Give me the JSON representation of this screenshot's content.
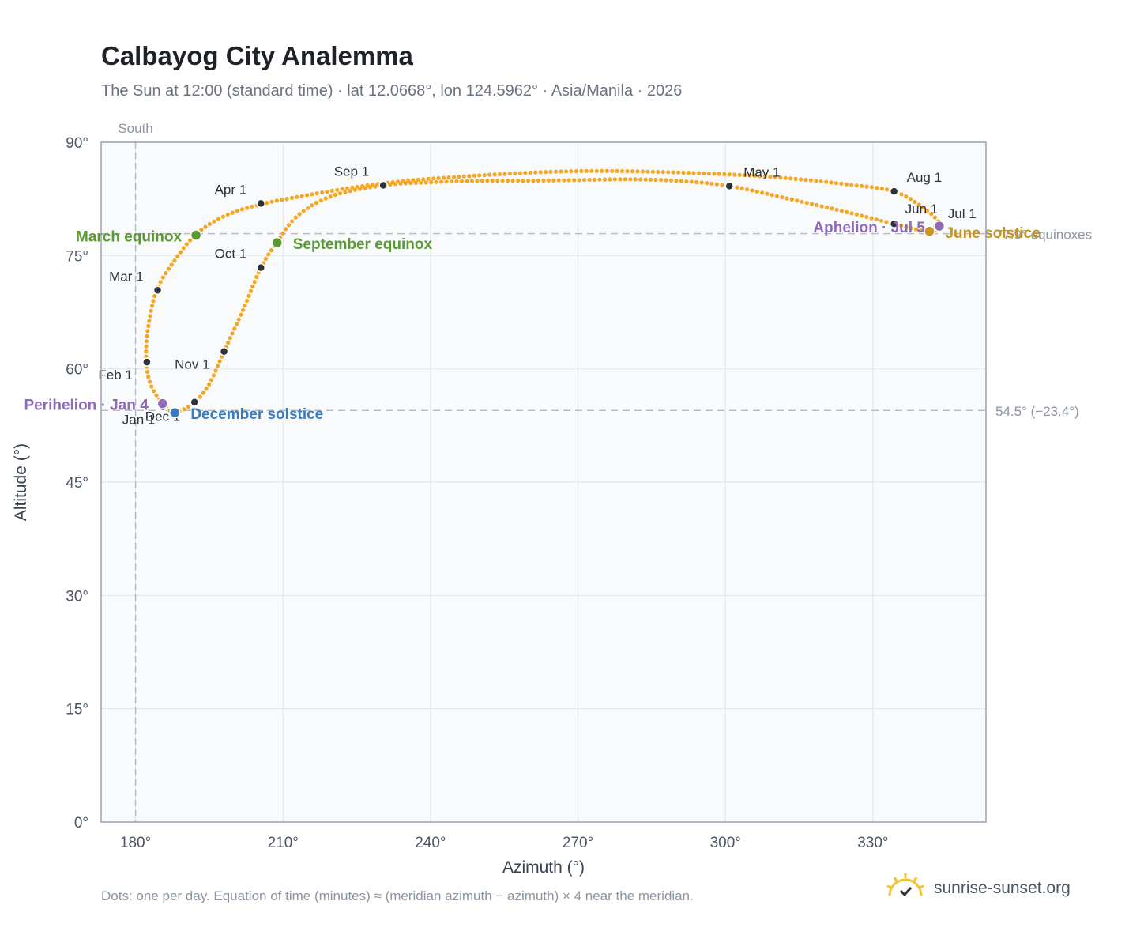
{
  "title": "Calbayog City Analemma",
  "subtitle": "The Sun at 12:00 (standard time) · lat 12.0668°, lon 124.5962° · Asia/Manila · 2026",
  "footnote": "Dots: one per day. Equation of time (minutes) ≈ (meridian azimuth − azimuth) × 4 near the meridian.",
  "brand": "sunrise-sunset.org",
  "colors": {
    "curve": "#f5a623",
    "month_marker": "#2d3238",
    "equinox": "#5a9a35",
    "december_solstice": "#3b7bbd",
    "june_solstice": "#c8931b",
    "perihelion_aphelion": "#8e6ab8",
    "reference_line": "#b9bec4",
    "meridian_line": "#a9bccb"
  },
  "chart_data": {
    "type": "scatter",
    "xlabel": "Azimuth (°)",
    "ylabel": "Altitude (°)",
    "xlim": [
      173,
      353
    ],
    "ylim": [
      0,
      90
    ],
    "x_ticks": [
      180,
      210,
      240,
      270,
      300,
      330
    ],
    "x_tick_labels": [
      "180°",
      "210°",
      "240°",
      "270°",
      "300°",
      "330°"
    ],
    "y_ticks": [
      0,
      15,
      30,
      45,
      60,
      75,
      90
    ],
    "y_tick_labels": [
      "0°",
      "15°",
      "30°",
      "45°",
      "60°",
      "75°",
      "90°"
    ],
    "grid": true,
    "meridian": {
      "azimuth": 180,
      "label": "South"
    },
    "reference_lines": [
      {
        "altitude": 77.9,
        "label": "77.9° equinoxes"
      },
      {
        "altitude": 54.5,
        "label": "54.5° (−23.4°)"
      }
    ],
    "path": [
      [
        185.5,
        55.4
      ],
      [
        183.2,
        57.7
      ],
      [
        182.2,
        60.8
      ],
      [
        182.5,
        65.2
      ],
      [
        184.3,
        70.4
      ],
      [
        188.0,
        74.4
      ],
      [
        192.3,
        77.8
      ],
      [
        198.0,
        80.2
      ],
      [
        205.5,
        81.8
      ],
      [
        215.0,
        83.0
      ],
      [
        225.0,
        84.1
      ],
      [
        235.0,
        84.9
      ],
      [
        245.0,
        85.4
      ],
      [
        255.0,
        85.8
      ],
      [
        265.0,
        86.1
      ],
      [
        275.0,
        86.2
      ],
      [
        285.0,
        86.1
      ],
      [
        295.0,
        85.9
      ],
      [
        305.0,
        85.6
      ],
      [
        315.0,
        85.1
      ],
      [
        325.0,
        84.4
      ],
      [
        334.3,
        83.5
      ],
      [
        340.5,
        81.2
      ],
      [
        343.5,
        79.2
      ],
      [
        341.5,
        78.2
      ],
      [
        334.3,
        79.2
      ],
      [
        325.0,
        80.7
      ],
      [
        315.0,
        82.2
      ],
      [
        300.8,
        84.2
      ],
      [
        290.0,
        84.9
      ],
      [
        280.0,
        85.1
      ],
      [
        270.0,
        85.0
      ],
      [
        260.0,
        84.9
      ],
      [
        250.0,
        84.9
      ],
      [
        240.0,
        84.7
      ],
      [
        230.4,
        84.3
      ],
      [
        220.0,
        82.9
      ],
      [
        213.0,
        80.3
      ],
      [
        208.8,
        76.8
      ],
      [
        205.5,
        73.4
      ],
      [
        202.0,
        68.0
      ],
      [
        198.0,
        62.3
      ],
      [
        195.0,
        58.0
      ],
      [
        192.0,
        55.6
      ],
      [
        188.0,
        54.2
      ],
      [
        185.5,
        55.4
      ]
    ],
    "month_markers": [
      {
        "label": "Jan 1",
        "x": 185.6,
        "y": 55.0
      },
      {
        "label": "Feb 1",
        "x": 182.3,
        "y": 60.9
      },
      {
        "label": "Mar 1",
        "x": 184.5,
        "y": 70.4
      },
      {
        "label": "Apr 1",
        "x": 205.5,
        "y": 81.9
      },
      {
        "label": "May 1",
        "x": 300.8,
        "y": 84.2
      },
      {
        "label": "Jun 1",
        "x": 334.3,
        "y": 79.2
      },
      {
        "label": "Jul 1",
        "x": 343.0,
        "y": 78.9
      },
      {
        "label": "Aug 1",
        "x": 334.3,
        "y": 83.5
      },
      {
        "label": "Sep 1",
        "x": 230.4,
        "y": 84.3
      },
      {
        "label": "Oct 1",
        "x": 205.5,
        "y": 73.4
      },
      {
        "label": "Nov 1",
        "x": 198.0,
        "y": 62.3
      },
      {
        "label": "Dec 1",
        "x": 192.0,
        "y": 55.6
      }
    ],
    "events": [
      {
        "label": "March equinox",
        "x": 192.3,
        "y": 77.7,
        "kind": "equinox"
      },
      {
        "label": "September equinox",
        "x": 208.8,
        "y": 76.7,
        "kind": "equinox"
      },
      {
        "label": "December solstice",
        "x": 188.0,
        "y": 54.2,
        "kind": "december_solstice"
      },
      {
        "label": "June solstice",
        "x": 341.5,
        "y": 78.2,
        "kind": "june_solstice"
      },
      {
        "label": "Perihelion · Jan 4",
        "x": 185.5,
        "y": 55.4,
        "kind": "perihelion_aphelion"
      },
      {
        "label": "Aphelion · Jul 5",
        "x": 343.5,
        "y": 78.9,
        "kind": "perihelion_aphelion"
      }
    ]
  }
}
